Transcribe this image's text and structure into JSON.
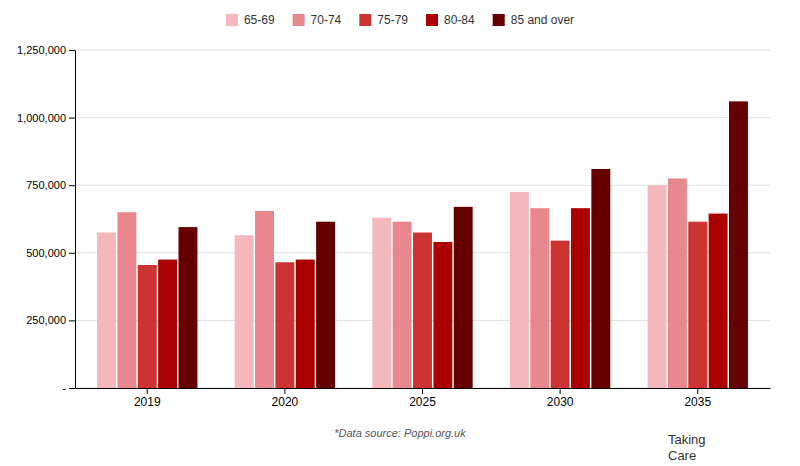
{
  "chart_data": {
    "type": "bar",
    "categories": [
      "2019",
      "2020",
      "2025",
      "2030",
      "2035"
    ],
    "series": [
      {
        "name": "65-69",
        "color": "#f4b8bc",
        "values": [
          575000,
          565000,
          630000,
          725000,
          750000
        ]
      },
      {
        "name": "70-74",
        "color": "#e8888e",
        "values": [
          650000,
          655000,
          615000,
          665000,
          775000
        ]
      },
      {
        "name": "75-79",
        "color": "#cc3333",
        "values": [
          455000,
          465000,
          575000,
          545000,
          615000
        ]
      },
      {
        "name": "80-84",
        "color": "#aa0000",
        "values": [
          475000,
          475000,
          540000,
          665000,
          645000
        ]
      },
      {
        "name": "85 and over",
        "color": "#660000",
        "values": [
          595000,
          615000,
          670000,
          810000,
          1060000
        ]
      }
    ],
    "ylim": [
      0,
      1250000
    ],
    "yticks": [
      {
        "value": 0,
        "label": "-"
      },
      {
        "value": 250000,
        "label": "250,000"
      },
      {
        "value": 500000,
        "label": "500,000"
      },
      {
        "value": 750000,
        "label": "750,000"
      },
      {
        "value": 1000000,
        "label": "1,000,000"
      },
      {
        "value": 1250000,
        "label": "1,250,000"
      }
    ],
    "grid": true,
    "legend": "top",
    "annotations": [
      "*Data source: Poppi.org.uk",
      "Taking\nCare"
    ]
  }
}
